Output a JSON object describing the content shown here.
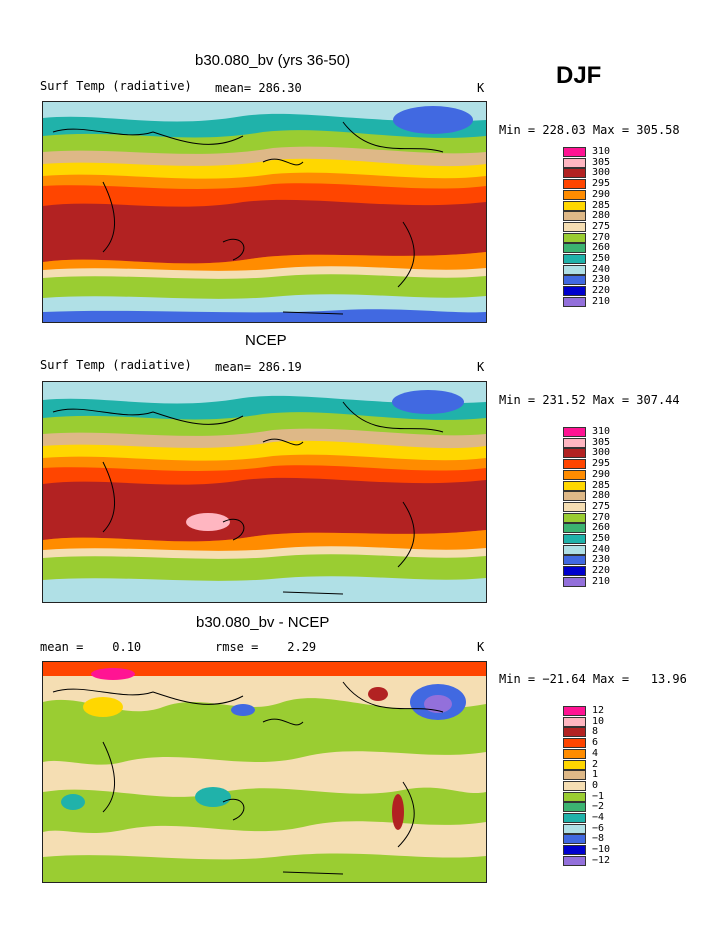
{
  "season": "DJF",
  "panels": [
    {
      "id": "model",
      "title": "b30.080_bv (yrs 36-50)",
      "left_label": "Surf Temp (radiative)",
      "mid_label": "mean= 286.30",
      "unit": "K",
      "minmax": "Min = 228.03 Max = 305.58",
      "legend": [
        "310",
        "305",
        "300",
        "295",
        "290",
        "285",
        "280",
        "275",
        "270",
        "260",
        "250",
        "240",
        "230",
        "220",
        "210"
      ]
    },
    {
      "id": "ncep",
      "title": "NCEP",
      "left_label": "Surf Temp (radiative)",
      "mid_label": "mean= 286.19",
      "unit": "K",
      "minmax": "Min = 231.52 Max = 307.44",
      "legend": [
        "310",
        "305",
        "300",
        "295",
        "290",
        "285",
        "280",
        "275",
        "270",
        "260",
        "250",
        "240",
        "230",
        "220",
        "210"
      ]
    },
    {
      "id": "diff",
      "title": "b30.080_bv - NCEP",
      "left_label": "mean =    0.10",
      "mid_label": "rmse =    2.29",
      "unit": "K",
      "minmax": "Min = −21.64 Max =   13.96",
      "legend": [
        "12",
        "10",
        "8",
        "6",
        "4",
        "2",
        "1",
        "0",
        "−1",
        "−2",
        "−4",
        "−6",
        "−8",
        "−10",
        "−12"
      ]
    }
  ],
  "colors": {
    "temp_scale": [
      "#ff1493",
      "#ffb6c1",
      "#b22222",
      "#ff4500",
      "#ff8c00",
      "#ffd700",
      "#deb887",
      "#f5deb3",
      "#9acd32",
      "#3cb371",
      "#20b2aa",
      "#b0e0e6",
      "#4169e1",
      "#0000cd",
      "#9370db"
    ],
    "coast": "#000000"
  }
}
